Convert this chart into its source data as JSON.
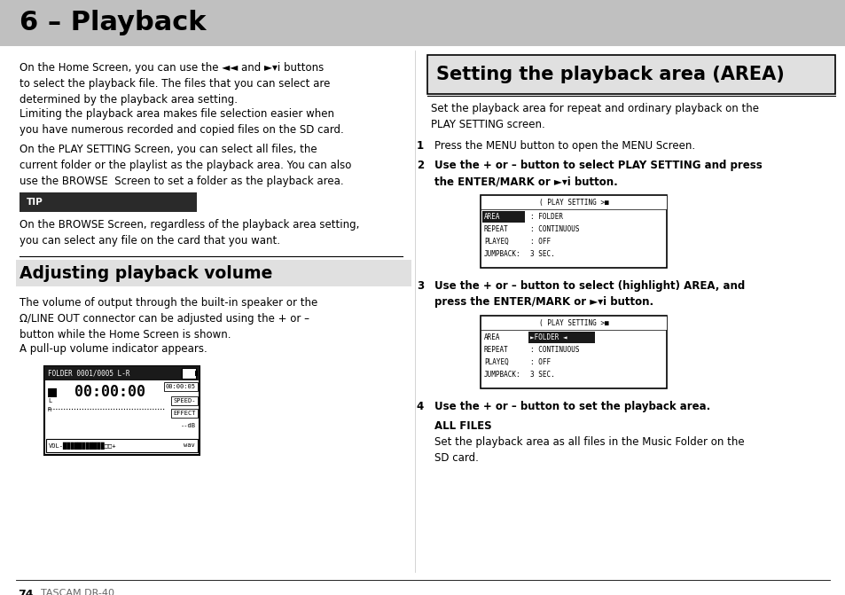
{
  "title": "6 – Playback",
  "title_bg": "#c0c0c0",
  "page_bg": "#ffffff",
  "body_fs": 8.5,
  "mono_fs": 6.5,
  "section_title_fs": 13.5,
  "heading_fs": 22,
  "footer_page": "74",
  "footer_brand": "TASCAM DR-40",
  "section3_title": "Setting the playback area (AREA)",
  "section2_title": "Adjusting playback volume",
  "all_files_title": "ALL FILES",
  "all_files_text": "Set the playback area as all files in the Music Folder on the\nSD card."
}
